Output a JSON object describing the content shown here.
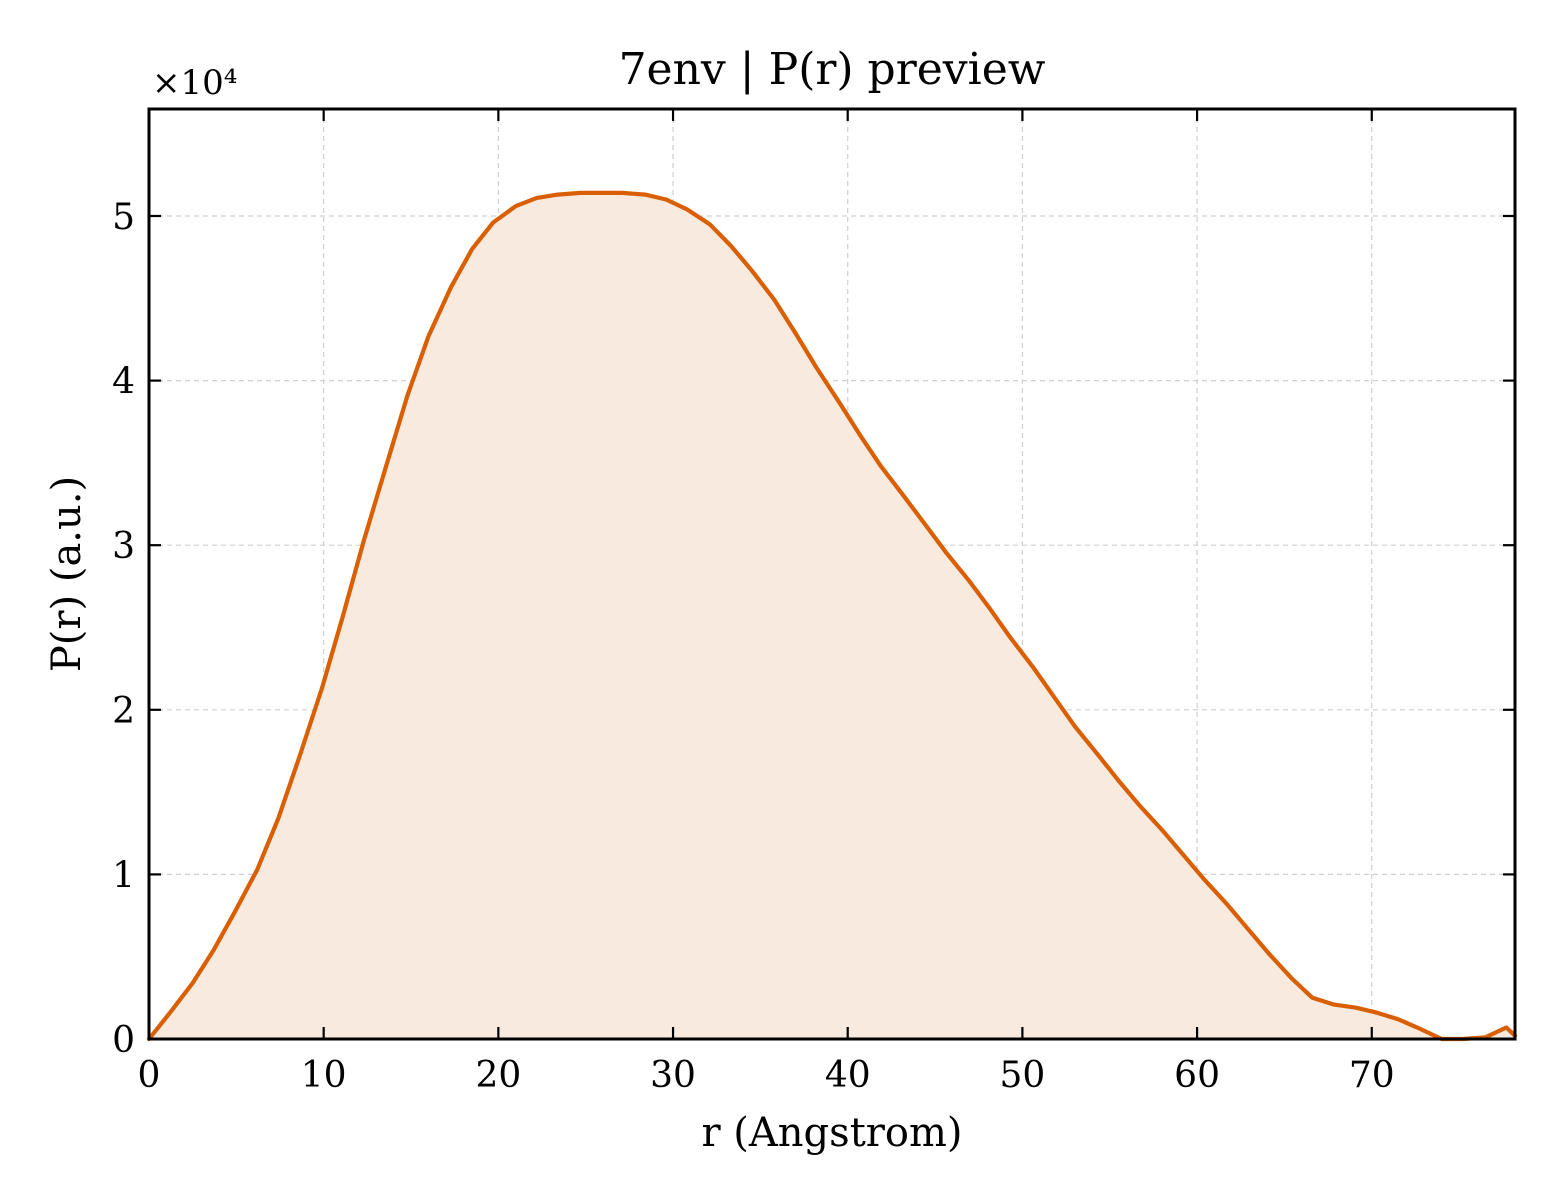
{
  "chart_data": {
    "type": "area",
    "title": "7env | P(r) preview",
    "xlabel": "r (Angstrom)",
    "ylabel": "P(r) (a.u.)",
    "y_scale_note": "×10⁴",
    "y_multiplier": 10000,
    "xlim": [
      0,
      78.2
    ],
    "ylim": [
      0,
      5.65
    ],
    "x_ticks": [
      0,
      10,
      20,
      30,
      40,
      50,
      60,
      70
    ],
    "x_tick_labels": [
      "0",
      "10",
      "20",
      "30",
      "40",
      "50",
      "60",
      "70"
    ],
    "y_ticks": [
      0,
      1,
      2,
      3,
      4,
      5
    ],
    "y_tick_labels": [
      "0",
      "1",
      "2",
      "3",
      "4",
      "5"
    ],
    "grid": true,
    "colors": {
      "line": "#d95f02",
      "fill": "#f9eadf",
      "frame": "#000000"
    },
    "series": [
      {
        "x": [
          0,
          1.2,
          2.5,
          3.7,
          4.9,
          6.2,
          7.4,
          8.6,
          9.9,
          11.1,
          12.3,
          13.6,
          14.8,
          16.0,
          17.3,
          18.5,
          19.7,
          21.0,
          22.2,
          23.4,
          24.7,
          25.9,
          27.1,
          28.4,
          29.6,
          30.8,
          32.1,
          33.3,
          34.5,
          35.8,
          37.0,
          38.2,
          39.5,
          40.7,
          41.9,
          43.2,
          44.4,
          45.6,
          46.9,
          48.1,
          49.3,
          50.6,
          51.8,
          53.0,
          54.3,
          55.5,
          56.7,
          58.0,
          59.2,
          60.4,
          61.7,
          62.9,
          64.1,
          65.4,
          66.6,
          67.8,
          69.1,
          70.3,
          71.5,
          72.8,
          74.0,
          75.2,
          76.5,
          77.7,
          78.2
        ],
        "values": [
          0.0,
          0.16,
          0.34,
          0.54,
          0.77,
          1.03,
          1.34,
          1.71,
          2.13,
          2.57,
          3.03,
          3.49,
          3.91,
          4.27,
          4.57,
          4.8,
          4.96,
          5.06,
          5.11,
          5.13,
          5.14,
          5.14,
          5.14,
          5.13,
          5.1,
          5.04,
          4.95,
          4.82,
          4.67,
          4.49,
          4.29,
          4.08,
          3.87,
          3.67,
          3.48,
          3.3,
          3.13,
          2.96,
          2.79,
          2.62,
          2.44,
          2.26,
          2.08,
          1.9,
          1.73,
          1.57,
          1.42,
          1.27,
          1.12,
          0.97,
          0.82,
          0.67,
          0.52,
          0.37,
          0.25,
          0.21,
          0.19,
          0.16,
          0.12,
          0.06,
          0.0,
          0.0,
          0.01,
          0.07,
          0.02
        ]
      }
    ]
  }
}
